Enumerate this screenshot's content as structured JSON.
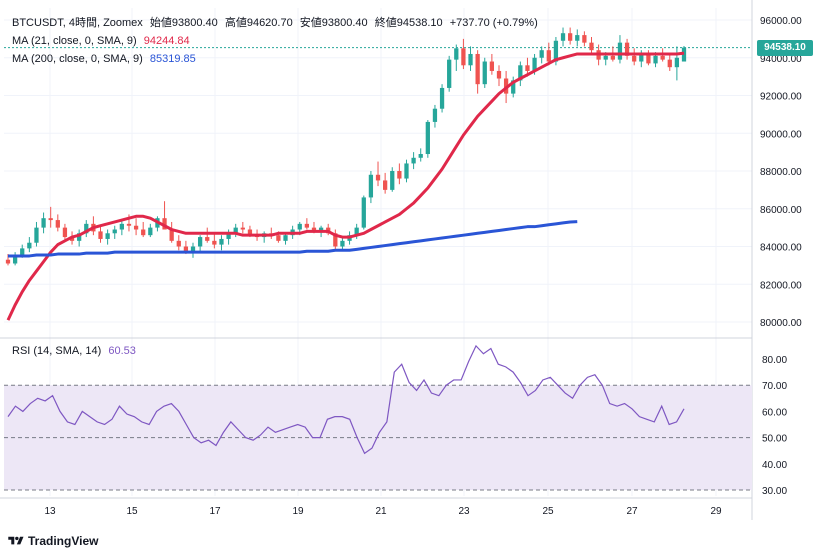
{
  "header": {
    "symbol_line": "BTCUSDT, 4時間, Zoomex",
    "open_label": "始値",
    "open_value": "93800.40",
    "high_label": "高値",
    "high_value": "94620.70",
    "low_label": "安値",
    "low_value": "93800.40",
    "close_label": "終値",
    "close_value": "94538.10",
    "change": "+737.70 (+0.79%)"
  },
  "indicators": {
    "ma21": {
      "label": "MA (21, close, 0, SMA, 9)",
      "value": "94244.84",
      "color": "#e0284a"
    },
    "ma200": {
      "label": "MA (200, close, 0, SMA, 9)",
      "value": "85319.85",
      "color": "#2a55d6"
    },
    "rsi": {
      "label": "RSI (14, SMA, 14)",
      "value": "60.53",
      "color": "#7e57c2"
    }
  },
  "last_price_tag": "94538.10",
  "brand": {
    "name": "TradingView"
  },
  "colors": {
    "up": "#26a69a",
    "down": "#ef5350",
    "rsi_band": "#ede7f6",
    "grid": "#f0f3fa"
  },
  "chart_data": [
    {
      "type": "candlestick",
      "title": "BTCUSDT, 4時間, Zoomex",
      "x_tick_labels": [
        "13",
        "15",
        "17",
        "19",
        "21",
        "23",
        "25",
        "27",
        "29"
      ],
      "y_tick_labels": [
        "80000.00",
        "82000.00",
        "84000.00",
        "86000.00",
        "88000.00",
        "90000.00",
        "92000.00",
        "94000.00",
        "96000.00"
      ],
      "ylim": [
        79000,
        96500
      ],
      "grid": true,
      "candles_ohlc": [
        [
          83300,
          83600,
          83000,
          83100
        ],
        [
          83100,
          83700,
          83000,
          83500
        ],
        [
          83500,
          84100,
          83400,
          83900
        ],
        [
          83900,
          84500,
          83700,
          84200
        ],
        [
          84200,
          85300,
          84000,
          85000
        ],
        [
          85000,
          85800,
          84700,
          85500
        ],
        [
          85500,
          86100,
          85000,
          85400
        ],
        [
          85400,
          85700,
          84800,
          85000
        ],
        [
          85000,
          85200,
          84300,
          84500
        ],
        [
          84500,
          84800,
          84100,
          84300
        ],
        [
          84300,
          84900,
          84000,
          84700
        ],
        [
          84700,
          85400,
          84500,
          85200
        ],
        [
          85200,
          85600,
          84600,
          84800
        ],
        [
          84800,
          85100,
          84200,
          84400
        ],
        [
          84400,
          84900,
          84100,
          84700
        ],
        [
          84700,
          85100,
          84400,
          84900
        ],
        [
          84900,
          85400,
          84600,
          85200
        ],
        [
          85200,
          85700,
          84800,
          85100
        ],
        [
          85100,
          85500,
          84600,
          84900
        ],
        [
          84900,
          85300,
          84500,
          84600
        ],
        [
          84600,
          85200,
          84500,
          85000
        ],
        [
          85000,
          85600,
          84800,
          85500
        ],
        [
          85500,
          86400,
          85100,
          84900
        ],
        [
          84900,
          85300,
          84200,
          84300
        ],
        [
          84300,
          84600,
          83800,
          84000
        ],
        [
          84000,
          84300,
          83600,
          83700
        ],
        [
          83700,
          84200,
          83400,
          84000
        ],
        [
          84000,
          84600,
          83700,
          84500
        ],
        [
          84500,
          85000,
          84200,
          84300
        ],
        [
          84300,
          84700,
          83900,
          84100
        ],
        [
          84100,
          84600,
          83800,
          84400
        ],
        [
          84400,
          84900,
          84100,
          84700
        ],
        [
          84700,
          85200,
          84500,
          85000
        ],
        [
          85000,
          85300,
          84700,
          84900
        ],
        [
          84900,
          85100,
          84500,
          84600
        ],
        [
          84600,
          84900,
          84300,
          84500
        ],
        [
          84500,
          84800,
          84200,
          84700
        ],
        [
          84700,
          85000,
          84400,
          84600
        ],
        [
          84600,
          84800,
          84200,
          84300
        ],
        [
          84300,
          84700,
          84100,
          84600
        ],
        [
          84600,
          85100,
          84400,
          84900
        ],
        [
          84900,
          85300,
          84600,
          85200
        ],
        [
          85200,
          85500,
          84900,
          85000
        ],
        [
          85000,
          85300,
          84700,
          84800
        ],
        [
          84800,
          85100,
          84500,
          85000
        ],
        [
          85000,
          85200,
          84600,
          84700
        ],
        [
          84700,
          84900,
          83800,
          84000
        ],
        [
          84000,
          84500,
          83800,
          84300
        ],
        [
          84300,
          84800,
          84100,
          84600
        ],
        [
          84600,
          85200,
          84400,
          85000
        ],
        [
          85000,
          86700,
          84900,
          86600
        ],
        [
          86600,
          88000,
          86300,
          87800
        ],
        [
          87800,
          88500,
          87200,
          87500
        ],
        [
          87500,
          87900,
          86800,
          87000
        ],
        [
          87000,
          88200,
          86900,
          88000
        ],
        [
          88000,
          88400,
          87300,
          87600
        ],
        [
          87600,
          88600,
          87400,
          88400
        ],
        [
          88400,
          89000,
          88100,
          88700
        ],
        [
          88700,
          89200,
          88500,
          88900
        ],
        [
          88900,
          90700,
          88700,
          90600
        ],
        [
          90600,
          91500,
          90300,
          91300
        ],
        [
          91300,
          92600,
          91100,
          92400
        ],
        [
          92400,
          94100,
          92200,
          93900
        ],
        [
          93900,
          94700,
          93300,
          94500
        ],
        [
          94500,
          95000,
          93400,
          93600
        ],
        [
          93600,
          94600,
          93300,
          94200
        ],
        [
          94200,
          94400,
          92100,
          92600
        ],
        [
          92600,
          94000,
          92400,
          93800
        ],
        [
          93800,
          94200,
          93100,
          93300
        ],
        [
          93300,
          93600,
          92500,
          92900
        ],
        [
          92900,
          93300,
          91600,
          92100
        ],
        [
          92100,
          93000,
          91900,
          92800
        ],
        [
          92800,
          93800,
          92500,
          93600
        ],
        [
          93600,
          94000,
          93000,
          93300
        ],
        [
          93300,
          94200,
          93100,
          94000
        ],
        [
          94000,
          94600,
          93700,
          94400
        ],
        [
          94400,
          94800,
          93600,
          93800
        ],
        [
          93800,
          95100,
          93600,
          94900
        ],
        [
          94900,
          95600,
          94600,
          95300
        ],
        [
          95300,
          95600,
          94700,
          94900
        ],
        [
          94900,
          95500,
          94600,
          95200
        ],
        [
          95200,
          95400,
          94600,
          94800
        ],
        [
          94800,
          95100,
          94200,
          94400
        ],
        [
          94400,
          94700,
          93600,
          93900
        ],
        [
          93900,
          94300,
          93600,
          94100
        ],
        [
          94100,
          94600,
          93800,
          93900
        ],
        [
          93900,
          95200,
          93700,
          94800
        ],
        [
          94800,
          95000,
          93900,
          94100
        ],
        [
          94100,
          94500,
          93600,
          93800
        ],
        [
          93800,
          94400,
          93500,
          94200
        ],
        [
          94200,
          94400,
          93600,
          93700
        ],
        [
          93700,
          94300,
          93500,
          94100
        ],
        [
          94100,
          94500,
          93800,
          93900
        ],
        [
          93900,
          94200,
          93300,
          93500
        ],
        [
          93500,
          94600,
          92800,
          94000
        ],
        [
          93800,
          94620,
          93800,
          94538
        ]
      ],
      "series": [
        {
          "name": "MA (21, close, 0, SMA, 9)",
          "values": [
            80100,
            80900,
            81600,
            82200,
            82700,
            83200,
            83700,
            84100,
            84300,
            84500,
            84600,
            84800,
            85000,
            85100,
            85200,
            85300,
            85400,
            85500,
            85600,
            85600,
            85500,
            85300,
            85100,
            84900,
            84800,
            84700,
            84700,
            84700,
            84700,
            84700,
            84700,
            84700,
            84700,
            84600,
            84600,
            84600,
            84600,
            84600,
            84700,
            84700,
            84700,
            84700,
            84800,
            84800,
            84800,
            84800,
            84600,
            84500,
            84500,
            84600,
            84700,
            84900,
            85100,
            85300,
            85500,
            85700,
            86000,
            86300,
            86700,
            87100,
            87600,
            88100,
            88700,
            89300,
            89900,
            90400,
            90900,
            91300,
            91700,
            92100,
            92400,
            92700,
            92900,
            93100,
            93300,
            93500,
            93700,
            93900,
            94000,
            94100,
            94200,
            94200,
            94200,
            94200,
            94200,
            94200,
            94200,
            94200,
            94200,
            94200,
            94200,
            94200,
            94200,
            94200,
            94200,
            94245
          ]
        },
        {
          "name": "MA (200, close, 0, SMA, 9)",
          "values": [
            83500,
            83500,
            83500,
            83500,
            83550,
            83550,
            83550,
            83600,
            83600,
            83600,
            83600,
            83650,
            83650,
            83650,
            83650,
            83700,
            83700,
            83700,
            83700,
            83700,
            83700,
            83700,
            83700,
            83700,
            83700,
            83700,
            83700,
            83700,
            83700,
            83700,
            83700,
            83700,
            83700,
            83700,
            83700,
            83700,
            83700,
            83700,
            83700,
            83700,
            83700,
            83700,
            83750,
            83750,
            83750,
            83750,
            83800,
            83800,
            83800,
            83850,
            83900,
            83950,
            84000,
            84050,
            84100,
            84150,
            84200,
            84250,
            84300,
            84350,
            84400,
            84450,
            84500,
            84550,
            84600,
            84650,
            84700,
            84750,
            84800,
            84850,
            84900,
            84950,
            85000,
            85050,
            85050,
            85100,
            85150,
            85200,
            85250,
            85300,
            85320
          ],
          "x_end_note": "MA200 line ends near candle 88"
        }
      ]
    },
    {
      "type": "line",
      "title": "RSI (14, SMA, 14)",
      "y_tick_labels": [
        "30.00",
        "40.00",
        "50.00",
        "60.00",
        "70.00",
        "80.00"
      ],
      "ylim": [
        28,
        87
      ],
      "band": [
        50,
        70
      ],
      "reference_lines": [
        30,
        50,
        70
      ],
      "series": [
        {
          "name": "RSI (14, SMA, 14)",
          "values": [
            58,
            62,
            60,
            63,
            65,
            64,
            66,
            60,
            56,
            55,
            60,
            58,
            56,
            55,
            57,
            62,
            59,
            58,
            56,
            55,
            60,
            62,
            63,
            60,
            55,
            50,
            48,
            49,
            47,
            52,
            56,
            53,
            50,
            49,
            51,
            54,
            52,
            53,
            54,
            55,
            54,
            50,
            50,
            57,
            58,
            58,
            57,
            50,
            44,
            46,
            52,
            56,
            75,
            78,
            71,
            68,
            72,
            67,
            66,
            70,
            72,
            72,
            79,
            85,
            82,
            84,
            78,
            77,
            75,
            71,
            66,
            68,
            72,
            73,
            70,
            67,
            65,
            70,
            73,
            74,
            70,
            63,
            62,
            63,
            61,
            58,
            57,
            56,
            62,
            55,
            56,
            61
          ],
          "note": "values approximate; final value 60.53"
        }
      ]
    }
  ]
}
